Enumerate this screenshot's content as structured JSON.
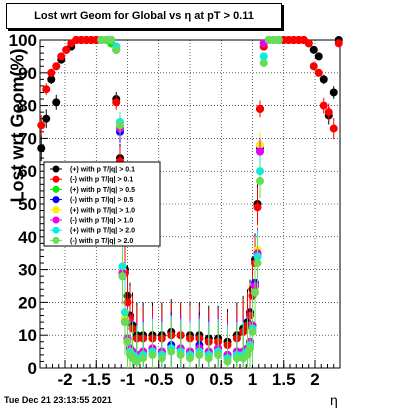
{
  "timestamp": "Tue Dec 21 23:13:55 2021",
  "chart_data": {
    "type": "scatter",
    "title": "Lost wrt Geom for Global vs   η at pT > 0.11",
    "xlabel": "η",
    "ylabel": "Lost wrt Geom(%)",
    "xlim": [
      -2.4,
      2.4
    ],
    "ylim": [
      0,
      100
    ],
    "xticks": [
      "-2",
      "-1.5",
      "-1",
      "-0.5",
      "0",
      "0.5",
      "1",
      "1.5",
      "2"
    ],
    "xtick_values": [
      -2,
      -1.5,
      -1,
      -0.5,
      0,
      0.5,
      1,
      1.5,
      2
    ],
    "yticks": [
      "0",
      "10",
      "20",
      "30",
      "40",
      "50",
      "60",
      "70",
      "80",
      "90",
      "100"
    ],
    "ytick_values": [
      0,
      10,
      20,
      30,
      40,
      50,
      60,
      70,
      80,
      90,
      100
    ],
    "grid": true,
    "legend_position": "middle-left",
    "series": [
      {
        "name": "(+) with p T/|q| > 0.1",
        "color": "#000000",
        "x": [
          -2.38,
          -2.3,
          -2.22,
          -2.14,
          -2.06,
          -1.98,
          -1.9,
          -1.82,
          -1.74,
          -1.66,
          -1.58,
          -1.5,
          -1.42,
          -1.34,
          -1.26,
          -1.18,
          -1.12,
          -1.08,
          -1.04,
          -1.0,
          -0.96,
          -0.92,
          -0.85,
          -0.75,
          -0.6,
          -0.45,
          -0.3,
          -0.15,
          0.0,
          0.15,
          0.3,
          0.45,
          0.6,
          0.75,
          0.85,
          0.92,
          0.96,
          1.0,
          1.04,
          1.08,
          1.12,
          1.18,
          1.26,
          1.34,
          1.42,
          1.5,
          1.58,
          1.66,
          1.74,
          1.82,
          1.9,
          1.98,
          2.06,
          2.14,
          2.22,
          2.3,
          2.38
        ],
        "y": [
          67,
          76,
          88,
          81,
          94,
          97,
          98,
          100,
          100,
          100,
          100,
          100,
          100,
          100,
          99,
          82,
          64,
          45,
          30,
          22,
          16,
          13,
          10,
          10,
          10,
          10,
          11,
          10,
          10,
          10,
          9,
          9,
          8,
          10,
          12,
          14,
          17,
          24,
          33,
          50,
          79,
          98,
          100,
          100,
          100,
          100,
          100,
          100,
          100,
          100,
          99,
          97,
          95,
          88,
          77,
          84,
          100
        ]
      },
      {
        "name": "(-) with p T/|q| > 0.1",
        "color": "#ff0000",
        "x": [
          -2.38,
          -2.3,
          -2.22,
          -2.14,
          -2.06,
          -1.98,
          -1.9,
          -1.82,
          -1.74,
          -1.66,
          -1.58,
          -1.5,
          -1.42,
          -1.34,
          -1.26,
          -1.18,
          -1.12,
          -1.08,
          -1.04,
          -1.0,
          -0.96,
          -0.92,
          -0.85,
          -0.75,
          -0.6,
          -0.45,
          -0.3,
          -0.15,
          0.0,
          0.15,
          0.3,
          0.45,
          0.6,
          0.75,
          0.85,
          0.92,
          0.96,
          1.0,
          1.04,
          1.08,
          1.12,
          1.18,
          1.26,
          1.34,
          1.42,
          1.5,
          1.58,
          1.66,
          1.74,
          1.82,
          1.9,
          1.98,
          2.06,
          2.14,
          2.22,
          2.3,
          2.38
        ],
        "y": [
          74,
          85,
          90,
          92,
          95,
          97,
          99,
          100,
          100,
          100,
          100,
          100,
          100,
          100,
          99,
          81,
          63,
          44,
          29,
          20,
          15,
          12,
          9,
          9,
          9,
          9,
          10,
          10,
          9,
          9,
          8,
          8,
          7,
          9,
          11,
          13,
          16,
          22,
          32,
          49,
          79,
          98,
          100,
          100,
          100,
          100,
          100,
          100,
          100,
          100,
          99,
          92,
          90,
          80,
          78,
          73,
          99
        ]
      },
      {
        "name": "(+) with p T/|q| > 0.5",
        "color": "#00ee00",
        "x": [
          -1.42,
          -1.34,
          -1.26,
          -1.18,
          -1.12,
          -1.08,
          -1.04,
          -1.0,
          -0.96,
          -0.92,
          -0.85,
          -0.75,
          -0.6,
          -0.45,
          -0.3,
          -0.15,
          0.0,
          0.15,
          0.3,
          0.45,
          0.6,
          0.75,
          0.85,
          0.92,
          0.96,
          1.0,
          1.04,
          1.08,
          1.12,
          1.18,
          1.26,
          1.34,
          1.42
        ],
        "y": [
          100,
          100,
          99,
          98,
          73,
          29,
          14,
          8,
          5,
          4,
          3,
          4,
          5,
          4,
          6,
          5,
          4,
          6,
          4,
          5,
          3,
          4,
          4,
          5,
          7,
          12,
          25,
          34,
          66,
          99,
          100,
          100,
          100
        ]
      },
      {
        "name": "(-) with p T/|q| > 0.5",
        "color": "#0000ff",
        "x": [
          -1.42,
          -1.34,
          -1.26,
          -1.18,
          -1.12,
          -1.08,
          -1.04,
          -1.0,
          -0.96,
          -0.92,
          -0.85,
          -0.75,
          -0.6,
          -0.45,
          -0.3,
          -0.15,
          0.0,
          0.15,
          0.3,
          0.45,
          0.6,
          0.75,
          0.85,
          0.92,
          0.96,
          1.0,
          1.04,
          1.08,
          1.12,
          1.18,
          1.26,
          1.34,
          1.42
        ],
        "y": [
          100,
          100,
          100,
          97,
          72,
          28,
          15,
          9,
          6,
          5,
          4,
          5,
          6,
          5,
          7,
          6,
          5,
          7,
          5,
          6,
          4,
          5,
          5,
          6,
          8,
          13,
          26,
          35,
          67,
          99,
          100,
          100,
          100
        ]
      },
      {
        "name": "(+) with p T/|q| > 1.0",
        "color": "#ffee00",
        "x": [
          -1.42,
          -1.34,
          -1.26,
          -1.18,
          -1.12,
          -1.08,
          -1.04,
          -1.0,
          -0.96,
          -0.92,
          -0.85,
          -0.75,
          -0.6,
          -0.45,
          -0.3,
          -0.15,
          0.0,
          0.15,
          0.3,
          0.45,
          0.6,
          0.75,
          0.85,
          0.92,
          0.96,
          1.0,
          1.04,
          1.08,
          1.12,
          1.18,
          1.26,
          1.34,
          1.42
        ],
        "y": [
          100,
          100,
          100,
          98,
          74,
          30,
          15,
          8,
          5,
          4,
          3,
          4,
          5,
          4,
          6,
          5,
          4,
          5,
          4,
          5,
          3,
          4,
          4,
          5,
          7,
          12,
          24,
          36,
          68,
          99,
          100,
          100,
          100
        ]
      },
      {
        "name": "(-) with p T/|q| > 1.0",
        "color": "#ee00ee",
        "x": [
          -1.42,
          -1.34,
          -1.26,
          -1.18,
          -1.12,
          -1.08,
          -1.04,
          -1.0,
          -0.96,
          -0.92,
          -0.85,
          -0.75,
          -0.6,
          -0.45,
          -0.3,
          -0.15,
          0.0,
          0.15,
          0.3,
          0.45,
          0.6,
          0.75,
          0.85,
          0.92,
          0.96,
          1.0,
          1.04,
          1.08,
          1.12,
          1.18,
          1.26,
          1.34,
          1.42
        ],
        "y": [
          100,
          100,
          100,
          98,
          73,
          29,
          14,
          9,
          6,
          5,
          4,
          5,
          6,
          5,
          6,
          6,
          5,
          6,
          5,
          6,
          4,
          5,
          5,
          6,
          8,
          13,
          25,
          35,
          66,
          99,
          100,
          100,
          100
        ]
      },
      {
        "name": "(+) with p T/|q| > 2.0",
        "color": "#00eeee",
        "x": [
          -1.42,
          -1.34,
          -1.26,
          -1.18,
          -1.12,
          -1.08,
          -1.04,
          -1.0,
          -0.96,
          -0.92,
          -0.85,
          -0.75,
          -0.6,
          -0.45,
          -0.3,
          -0.15,
          0.0,
          0.15,
          0.3,
          0.45,
          0.6,
          0.75,
          0.85,
          0.92,
          0.96,
          1.0,
          1.04,
          1.08,
          1.12,
          1.18,
          1.26,
          1.34,
          1.42
        ],
        "y": [
          100,
          100,
          100,
          98,
          75,
          31,
          17,
          8,
          5,
          4,
          3,
          4,
          5,
          4,
          6,
          5,
          4,
          5,
          4,
          5,
          3,
          4,
          4,
          5,
          7,
          12,
          23,
          34,
          60,
          95,
          100,
          100,
          100
        ]
      },
      {
        "name": "(-) with p T/|q| > 2.0",
        "color": "#66dd55",
        "x": [
          -1.42,
          -1.34,
          -1.26,
          -1.18,
          -1.12,
          -1.08,
          -1.04,
          -1.0,
          -0.96,
          -0.92,
          -0.85,
          -0.75,
          -0.6,
          -0.45,
          -0.3,
          -0.15,
          0.0,
          0.15,
          0.3,
          0.45,
          0.6,
          0.75,
          0.85,
          0.92,
          0.96,
          1.0,
          1.04,
          1.08,
          1.12,
          1.18,
          1.26,
          1.34,
          1.42
        ],
        "y": [
          100,
          100,
          100,
          97,
          74,
          28,
          14,
          8,
          4,
          3,
          2,
          3,
          4,
          3,
          5,
          4,
          3,
          4,
          3,
          4,
          2,
          3,
          3,
          4,
          6,
          11,
          23,
          32,
          57,
          93,
          100,
          100,
          100
        ]
      }
    ]
  }
}
